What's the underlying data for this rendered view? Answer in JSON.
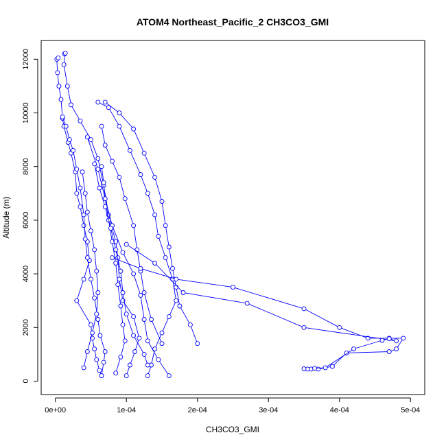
{
  "chart_data": {
    "type": "line",
    "title": "ATOM4 Northeast_Pacific_2 CH3CO3_GMI",
    "xlabel": "CH3CO3_GMI",
    "ylabel": "Altitude (m)",
    "xlim": [
      -2e-05,
      0.00052
    ],
    "ylim": [
      -500,
      12700
    ],
    "xticks": [
      0,
      0.0001,
      0.0002,
      0.0003,
      0.0004,
      0.0005
    ],
    "xtick_labels": [
      "0e+00",
      "1e-04",
      "2e-04",
      "3e-04",
      "4e-04",
      "5e-04"
    ],
    "yticks": [
      0,
      2000,
      4000,
      6000,
      8000,
      10000,
      12000
    ],
    "ytick_labels": [
      "0",
      "2000",
      "4000",
      "6000",
      "8000",
      "10000",
      "12000"
    ],
    "grid": false,
    "series_color": "#0000ff",
    "markers": "open-circle",
    "series": [
      {
        "points": [
          [
            6.5e-05,
            200
          ],
          [
            6.2e-05,
            400
          ],
          [
            5.8e-05,
            800
          ],
          [
            5.5e-05,
            1200
          ],
          [
            5.2e-05,
            1600
          ],
          [
            5e-05,
            2100
          ],
          [
            3e-05,
            3000
          ],
          [
            4e-05,
            3800
          ],
          [
            4.8e-05,
            4500
          ],
          [
            4.5e-05,
            5200
          ],
          [
            4e-05,
            5800
          ],
          [
            3.5e-05,
            6500
          ],
          [
            3e-05,
            7000
          ],
          [
            2.8e-05,
            7800
          ],
          [
            2.2e-05,
            8500
          ],
          [
            1.8e-05,
            8900
          ],
          [
            1.2e-05,
            9500
          ],
          [
            1e-05,
            9800
          ],
          [
            8e-06,
            10500
          ],
          [
            5e-06,
            11000
          ],
          [
            3e-06,
            11500
          ],
          [
            2e-06,
            12000
          ],
          [
            4e-06,
            12050
          ]
        ]
      },
      {
        "points": [
          [
            6.5e-05,
            200
          ],
          [
            6.8e-05,
            700
          ],
          [
            7e-05,
            1100
          ],
          [
            6.3e-05,
            1700
          ],
          [
            6e-05,
            2300
          ],
          [
            5.5e-05,
            3100
          ],
          [
            5e-05,
            3800
          ],
          [
            4.5e-05,
            4600
          ],
          [
            4.2e-05,
            5300
          ],
          [
            4e-05,
            6200
          ],
          [
            3.5e-05,
            7200
          ],
          [
            3e-05,
            7900
          ],
          [
            2.5e-05,
            8600
          ],
          [
            2e-05,
            9000
          ],
          [
            1.5e-05,
            9500
          ],
          [
            1e-05,
            9850
          ]
        ]
      },
      {
        "points": [
          [
            0.0001,
            200
          ],
          [
            0.000105,
            600
          ],
          [
            0.000112,
            1100
          ],
          [
            0.000118,
            1600
          ],
          [
            0.00011,
            2400
          ],
          [
            9.5e-05,
            3000
          ],
          [
            9e-05,
            3800
          ],
          [
            8.8e-05,
            4600
          ],
          [
            8.5e-05,
            5200
          ],
          [
            7.5e-05,
            6200
          ],
          [
            6.8e-05,
            7300
          ],
          [
            6e-05,
            8300
          ],
          [
            5e-05,
            9000
          ],
          [
            3.5e-05,
            9700
          ],
          [
            2.2e-05,
            10300
          ],
          [
            1.7e-05,
            11000
          ],
          [
            1.2e-05,
            11800
          ],
          [
            1.3e-05,
            12200
          ],
          [
            1.4e-05,
            12230
          ]
        ]
      },
      {
        "points": [
          [
            0.00016,
            200
          ],
          [
            0.000145,
            800
          ],
          [
            0.00013,
            1500
          ],
          [
            0.000125,
            2300
          ],
          [
            0.00012,
            3200
          ],
          [
            0.00011,
            4000
          ],
          [
            9.5e-05,
            4800
          ],
          [
            8e-05,
            5800
          ],
          [
            7e-05,
            6800
          ],
          [
            6e-05,
            7900
          ],
          [
            4.5e-05,
            9100
          ]
        ]
      },
      {
        "points": [
          [
            0.00013,
            200
          ],
          [
            0.000135,
            600
          ],
          [
            0.00014,
            1200
          ],
          [
            0.00015,
            1800
          ],
          [
            0.00016,
            2400
          ],
          [
            0.00017,
            3000
          ],
          [
            0.000165,
            3800
          ],
          [
            0.000155,
            4600
          ],
          [
            0.000145,
            5400
          ],
          [
            0.00014,
            6200
          ],
          [
            0.00013,
            7000
          ],
          [
            0.00012,
            7700
          ],
          [
            0.000105,
            8600
          ],
          [
            9e-05,
            9500
          ],
          [
            7.5e-05,
            10200
          ],
          [
            6e-05,
            10400
          ]
        ]
      },
      {
        "points": [
          [
            0.0002,
            1400
          ],
          [
            0.00019,
            2100
          ],
          [
            0.000175,
            2800
          ],
          [
            0.00017,
            3500
          ],
          [
            0.000165,
            4200
          ],
          [
            0.00016,
            5000
          ],
          [
            0.000155,
            5800
          ],
          [
            0.00015,
            6700
          ],
          [
            0.00014,
            7600
          ],
          [
            0.000125,
            8500
          ],
          [
            0.00011,
            9400
          ],
          [
            9e-05,
            10000
          ],
          [
            7e-05,
            10400
          ]
        ]
      },
      {
        "points": [
          [
            0.00015,
            1400
          ],
          [
            0.000135,
            2300
          ],
          [
            0.000125,
            3300
          ],
          [
            0.00012,
            4100
          ],
          [
            0.000115,
            4900
          ],
          [
            0.00011,
            5800
          ],
          [
            9.8e-05,
            6800
          ],
          [
            9e-05,
            7600
          ],
          [
            8e-05,
            8200
          ],
          [
            7e-05,
            8800
          ],
          [
            6.5e-05,
            9500
          ]
        ]
      },
      {
        "points": [
          [
            8.5e-05,
            300
          ],
          [
            9.2e-05,
            900
          ],
          [
            9.8e-05,
            1500
          ],
          [
            9.5e-05,
            2100
          ],
          [
            9.2e-05,
            2800
          ],
          [
            8.8e-05,
            3600
          ],
          [
            8.5e-05,
            4400
          ],
          [
            8e-05,
            5200
          ],
          [
            7.5e-05,
            6000
          ],
          [
            7e-05,
            6800
          ],
          [
            6.8e-05,
            7400
          ],
          [
            6.5e-05,
            8000
          ]
        ]
      },
      {
        "points": [
          [
            0.00013,
            600
          ],
          [
            0.000125,
            1000
          ],
          [
            0.00011,
            1700
          ],
          [
            0.0001,
            2500
          ],
          [
            9.5e-05,
            3300
          ],
          [
            9.2e-05,
            4100
          ],
          [
            8.5e-05,
            4900
          ],
          [
            7.8e-05,
            5700
          ],
          [
            7e-05,
            6500
          ],
          [
            6.2e-05,
            7200
          ],
          [
            5.5e-05,
            8100
          ]
        ]
      },
      {
        "points": [
          [
            4e-05,
            500
          ],
          [
            4.5e-05,
            1100
          ],
          [
            5.2e-05,
            1800
          ],
          [
            5.8e-05,
            2500
          ],
          [
            6e-05,
            3300
          ],
          [
            5.8e-05,
            4100
          ],
          [
            5.5e-05,
            4900
          ],
          [
            5e-05,
            5600
          ],
          [
            4.5e-05,
            6300
          ],
          [
            4.2e-05,
            7000
          ],
          [
            3.8e-05,
            7800
          ]
        ]
      },
      {
        "points": [
          [
            8e-05,
            4600
          ],
          [
            0.00012,
            4200
          ],
          [
            0.00017,
            3800
          ],
          [
            0.00025,
            3500
          ],
          [
            0.00035,
            2700
          ],
          [
            0.0004,
            2000
          ],
          [
            0.00044,
            1600
          ],
          [
            0.00047,
            1600
          ],
          [
            0.00049,
            1600
          ],
          [
            0.00048,
            1200
          ],
          [
            0.00047,
            1100
          ],
          [
            0.00041,
            1050
          ],
          [
            0.00039,
            550
          ],
          [
            0.00037,
            450
          ],
          [
            0.00036,
            450
          ],
          [
            0.000355,
            450
          ],
          [
            0.00035,
            460
          ]
        ]
      },
      {
        "points": [
          [
            0.0001,
            5100
          ],
          [
            0.00014,
            4400
          ],
          [
            0.00018,
            3300
          ],
          [
            0.00027,
            2900
          ],
          [
            0.00035,
            2000
          ],
          [
            0.00048,
            1500
          ],
          [
            0.00047,
            1580
          ],
          [
            0.00046,
            1520
          ],
          [
            0.00042,
            1200
          ],
          [
            0.00038,
            500
          ],
          [
            0.000365,
            480
          ]
        ]
      }
    ]
  }
}
